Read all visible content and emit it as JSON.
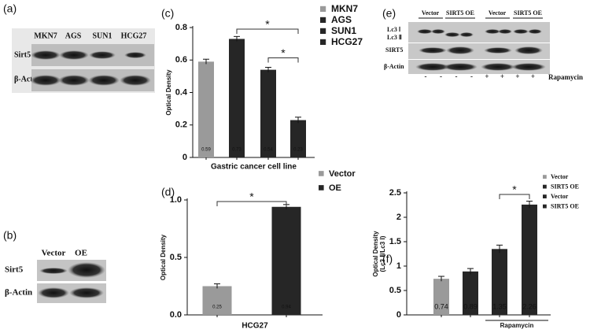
{
  "blots": {
    "a": {
      "label": "(a)",
      "lanes": [
        "MKN7",
        "AGS",
        "SUN1",
        "HCG27"
      ],
      "rows": [
        "Sirt5",
        "β-Actin"
      ]
    },
    "b": {
      "label": "(b)",
      "lanes": [
        "Vector",
        "OE"
      ],
      "rows": [
        "Sirt5",
        "β-Actin"
      ]
    },
    "e": {
      "label": "(e)",
      "lanes": [
        "Vector",
        "SIRT5 OE",
        "Vector",
        "SIRT5 OE"
      ],
      "rows": [
        "Lc3 Ⅰ",
        "Lc3 Ⅱ",
        "SIRT5",
        "β-Actin"
      ],
      "treatment": [
        "-",
        "-",
        "-",
        "-",
        "+",
        "+",
        "+",
        "+"
      ],
      "treatment_label": "Rapamycin"
    }
  },
  "chart_data": [
    {
      "type": "bar",
      "label": "(c)",
      "categories": [
        "MKN7",
        "AGS",
        "SUN1",
        "HCG27"
      ],
      "values": [
        0.59,
        0.73,
        0.54,
        0.23
      ],
      "errors": [
        0.015,
        0.015,
        0.015,
        0.018
      ],
      "colors": [
        "#9a9a9a",
        "#262626",
        "#262626",
        "#262626"
      ],
      "ylim": [
        0,
        0.8
      ],
      "yticks": [
        0,
        0.2,
        0.4,
        0.6,
        0.8
      ],
      "ylabel": [
        "Optical Density"
      ],
      "xlabel": "Gastric cancer cell line",
      "annotations": [
        {
          "text": "*",
          "between": [
            1,
            3
          ]
        },
        {
          "text": "*",
          "between": [
            2,
            3
          ]
        }
      ]
    },
    {
      "type": "bar",
      "label": "(d)",
      "categories": [
        "Vector",
        "OE"
      ],
      "values": [
        0.25,
        0.94
      ],
      "errors": [
        0.02,
        0.02
      ],
      "colors": [
        "#9a9a9a",
        "#262626"
      ],
      "ylim": [
        0,
        1
      ],
      "yticks": [
        {
          "value": 0,
          "label": "0.0"
        },
        0.5,
        {
          "value": 1,
          "label": "1.0"
        }
      ],
      "ylabel": [
        "Optical Density"
      ],
      "xlabel": "HCG27",
      "annotations": [
        {
          "text": "*",
          "between": [
            0,
            1
          ]
        }
      ]
    },
    {
      "type": "bar",
      "label": "(f)",
      "categories": [
        "Vector",
        "SIRT5 OE",
        "Vector",
        "SIRT5 OE"
      ],
      "values": [
        0.74,
        0.89,
        1.35,
        2.26
      ],
      "errors": [
        0.05,
        0.06,
        0.08,
        0.07
      ],
      "colors": [
        "#9a9a9a",
        "#262626",
        "#262626",
        "#262626"
      ],
      "ylim": [
        0,
        2.5
      ],
      "yticks": [
        0,
        0.5,
        1,
        1.5,
        2,
        2.5
      ],
      "ylabel": [
        "Optical Density",
        "(Lc3 Ⅱ/Lc3 Ⅰ)"
      ],
      "annotations": [
        {
          "text": "*",
          "between": [
            2,
            3
          ]
        }
      ],
      "bracket_label": {
        "text": "Rapamycin",
        "between": [
          2,
          3
        ]
      }
    }
  ]
}
